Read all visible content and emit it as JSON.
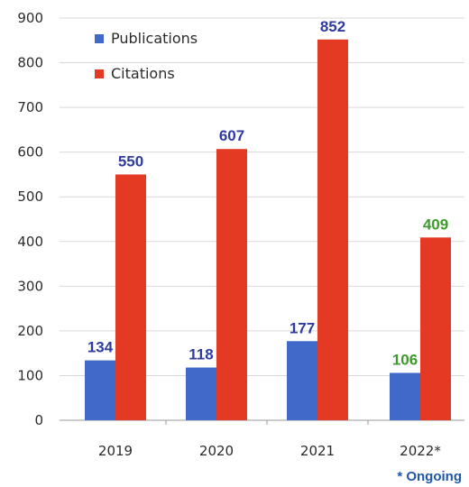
{
  "chart_data": {
    "type": "bar",
    "categories": [
      "2019",
      "2020",
      "2021",
      "2022*"
    ],
    "series": [
      {
        "name": "Publications",
        "values": [
          134,
          118,
          177,
          106
        ],
        "color": "#4169c9"
      },
      {
        "name": "Citations",
        "values": [
          550,
          607,
          852,
          409
        ],
        "color": "#e43a24"
      }
    ],
    "ylim": [
      0,
      900
    ],
    "yticks": [
      0,
      100,
      200,
      300,
      400,
      500,
      600,
      700,
      800,
      900
    ],
    "ytick_labels": [
      "0",
      "100",
      "200",
      "300",
      "400",
      "500",
      "600",
      "700",
      "800",
      "900"
    ],
    "grid": true,
    "legend_position": "top-left",
    "data_label_colors": {
      "default": [
        "#2f3c9e",
        "#2f3c9e"
      ],
      "ongoing": "#3e9a2e"
    },
    "ongoing_category": "2022*",
    "note": "* Ongoing",
    "note_color": "#1f57a8"
  }
}
